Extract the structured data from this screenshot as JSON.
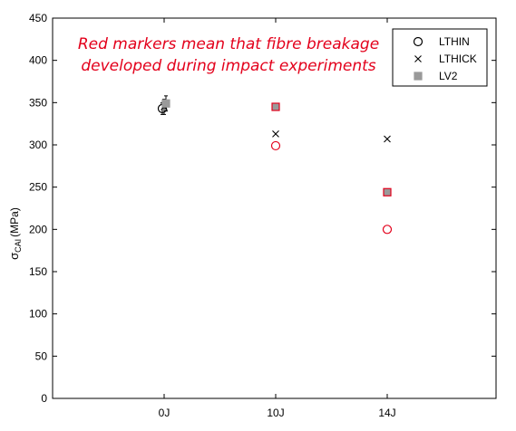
{
  "chart_data": {
    "type": "scatter",
    "categories": [
      "0J",
      "10J",
      "14J"
    ],
    "ylabel_main": "σ",
    "ylabel_sub": "CAI",
    "ylabel_unit": "(MPa)",
    "ylim": [
      0,
      450
    ],
    "yticks": [
      0,
      50,
      100,
      150,
      200,
      250,
      300,
      350,
      400,
      450
    ],
    "grid": false,
    "legend_position": "top-right",
    "annotation_lines": [
      "Red markers mean that fibre breakage",
      "developed during impact experiments"
    ],
    "series": [
      {
        "name": "LTHIN",
        "marker": "open-circle",
        "values": [
          343,
          299,
          200
        ],
        "errors": [
          7,
          null,
          null
        ],
        "fibre_breakage": [
          false,
          true,
          true
        ]
      },
      {
        "name": "LTHICK",
        "marker": "x",
        "values": [
          345,
          313,
          307
        ],
        "errors": [
          9,
          null,
          null
        ],
        "fibre_breakage": [
          false,
          false,
          false
        ]
      },
      {
        "name": "LV2",
        "marker": "filled-square",
        "values": [
          349,
          345,
          244
        ],
        "errors": [
          9,
          null,
          null
        ],
        "fibre_breakage": [
          false,
          true,
          true
        ]
      }
    ],
    "colors": {
      "normal": "#000000",
      "breakage": "#e3001b",
      "square_fill": "#9a9a9a",
      "annotation": "#e3001b"
    }
  }
}
